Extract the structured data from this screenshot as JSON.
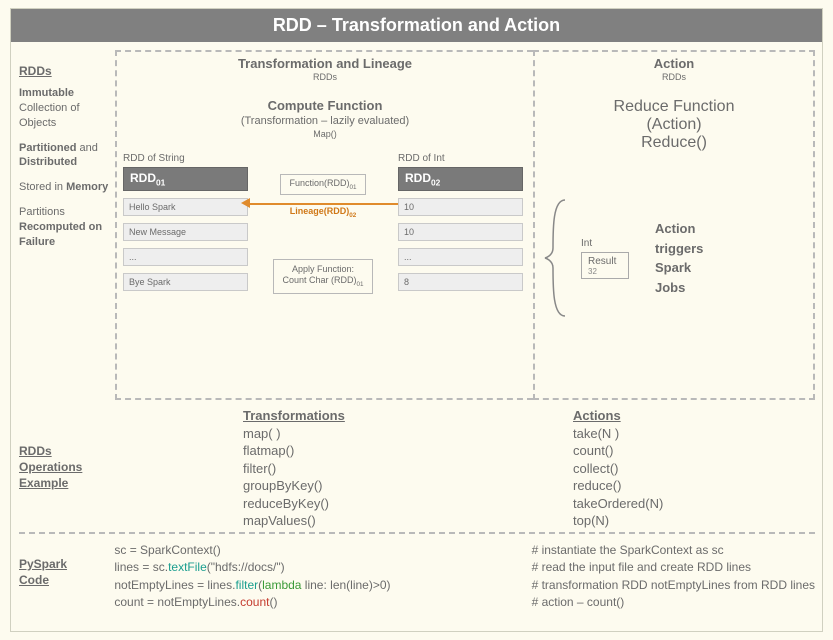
{
  "title": "RDD – Transformation and Action",
  "colors": {
    "page_bg": "#fdfbef",
    "titlebar_bg": "#808080",
    "titlebar_fg": "#ffffff",
    "text": "#6b6b6b",
    "dash_border": "#b9b9b9",
    "rdd_head_bg": "#7a7a7a",
    "rdd_cell_bg": "#eeeeee",
    "arrow": "#e08b2c",
    "lineage_text": "#d07818",
    "code_teal": "#1a9e8f",
    "code_red": "#c43b2e",
    "code_green": "#3a9a38"
  },
  "left_sidebar": {
    "header": "RDDs",
    "lines": [
      {
        "bold_first": "Immutable",
        "rest": " Collection of Objects"
      },
      {
        "bold_first": "Partitioned",
        "rest": " and "
      },
      {
        "bold_first": "Distributed",
        "rest": ""
      },
      {
        "prefix": "Stored in ",
        "bold": "Memory"
      },
      {
        "prefix": "Partitions ",
        "bold": "Recomputed on Failure"
      }
    ]
  },
  "panel_transform": {
    "title": "Transformation and Lineage",
    "subtitle": "RDDs",
    "compute": {
      "heading": "Compute Function",
      "sub1": "(Transformation – lazily evaluated)",
      "sub2": "Map()"
    },
    "rdd1": {
      "label": "RDD of String",
      "head_html": "RDD<sub>01</sub>",
      "cells": [
        "Hello Spark",
        "New Message",
        "...",
        "Bye Spark"
      ]
    },
    "mid": {
      "function_html": "Function(RDD)<sub>01</sub>",
      "lineage_html": "Lineage(RDD)<sub>02</sub>",
      "apply_line1": "Apply Function:",
      "apply_line2_html": "Count Char (RDD)<sub>01</sub>"
    },
    "rdd2": {
      "label": "RDD of Int",
      "head_html": "RDD<sub>02</sub>",
      "cells": [
        "10",
        "10",
        "...",
        "8"
      ]
    }
  },
  "panel_action": {
    "title": "Action",
    "subtitle": "RDDs",
    "reduce": {
      "heading": "Reduce Function",
      "sub1": "(Action)",
      "sub2": "Reduce()"
    },
    "result": {
      "type_label": "Int",
      "box_title": "Result",
      "box_value": "32"
    },
    "action_text": [
      "Action",
      "triggers",
      "Spark",
      "Jobs"
    ]
  },
  "operations": {
    "label": "RDDs Operations Example",
    "transformations": {
      "header": "Transformations",
      "items": [
        "map( )",
        "flatmap()",
        "filter()",
        "groupByKey()",
        "reduceByKey()",
        "mapValues()"
      ]
    },
    "actions": {
      "header": "Actions",
      "items": [
        "take(N )",
        "count()",
        "collect()",
        "reduce()",
        "takeOrdered(N)",
        "top(N)"
      ]
    }
  },
  "pyspark": {
    "label": "PySpark Code",
    "lines": [
      {
        "segments": [
          [
            "",
            "sc = SparkContext()"
          ]
        ]
      },
      {
        "segments": [
          [
            "",
            "lines = sc."
          ],
          [
            "teal",
            "textFile"
          ],
          [
            "",
            "(\"hdfs://docs/\")"
          ]
        ]
      },
      {
        "segments": [
          [
            "",
            "notEmptyLines = lines."
          ],
          [
            "teal",
            "filter"
          ],
          [
            "",
            "("
          ],
          [
            "green",
            "lambda"
          ],
          [
            "",
            " line: len(line)>0)"
          ]
        ]
      },
      {
        "segments": [
          [
            "",
            "count = notEmptyLines."
          ],
          [
            "red",
            "count"
          ],
          [
            "",
            "()"
          ]
        ]
      }
    ],
    "comments": [
      "# instantiate the SparkContext as sc",
      "# read the input file and create RDD lines",
      "# transformation RDD notEmptyLines from RDD lines",
      "# action – count()"
    ]
  }
}
